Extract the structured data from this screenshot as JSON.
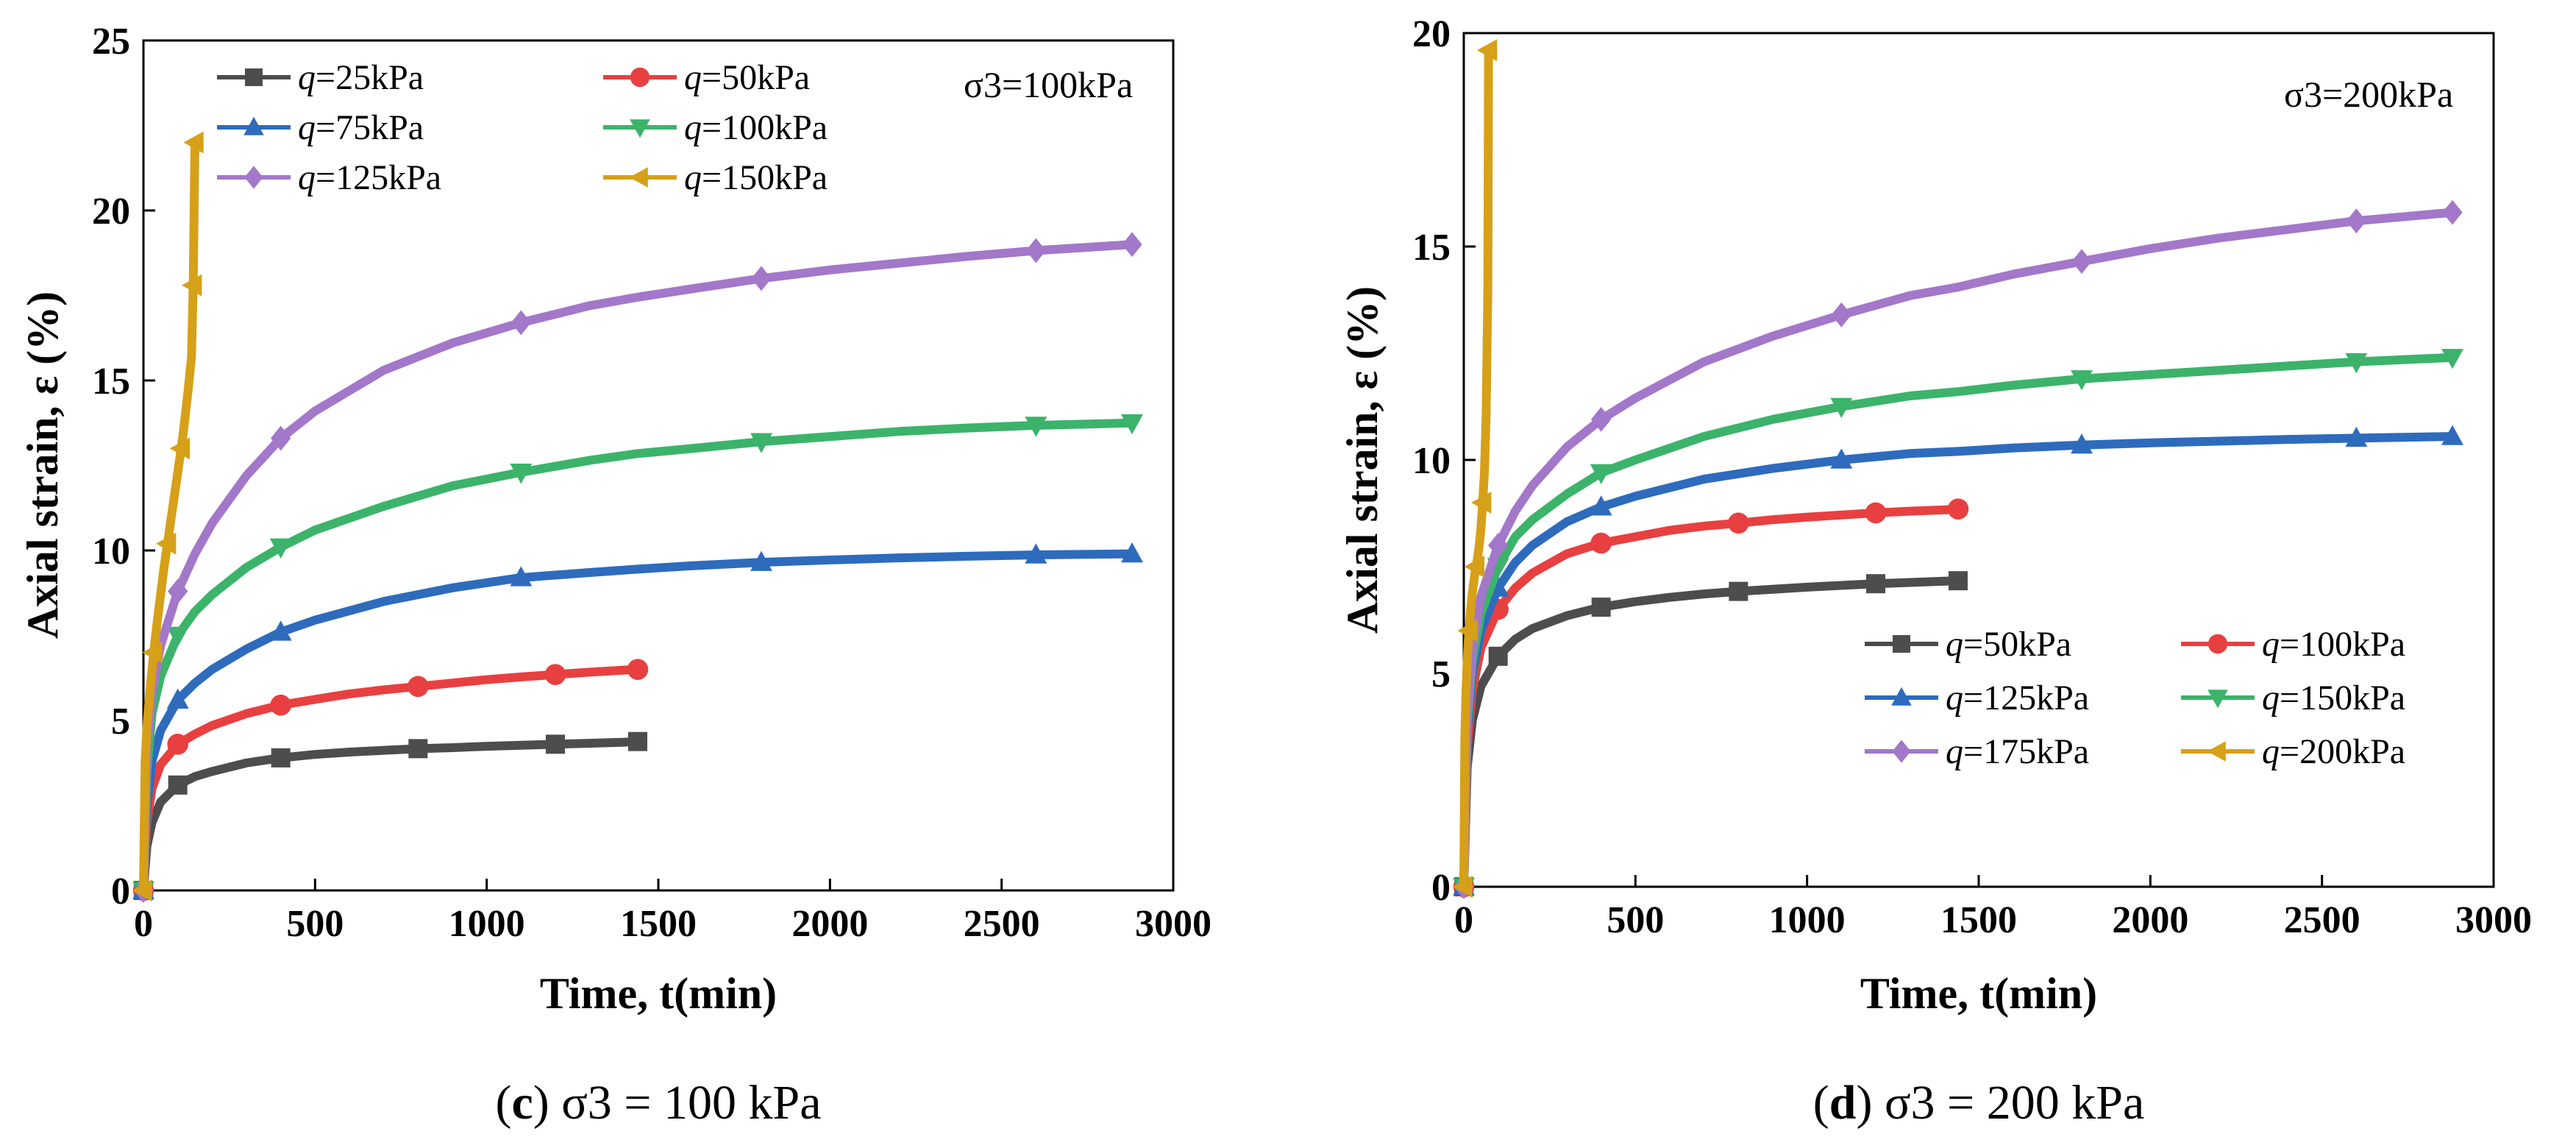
{
  "chart_data": [
    {
      "type": "line",
      "panel": "c",
      "xlabel": "Time, t(min)",
      "ylabel": "Axial strain, ε (%)",
      "xlim": [
        0,
        3000
      ],
      "ylim": [
        0,
        25
      ],
      "xticks": [
        0,
        500,
        1000,
        1500,
        2000,
        2500,
        3000
      ],
      "yticks": [
        0,
        5,
        10,
        15,
        20,
        25
      ],
      "annotation": "σ3=100kPa",
      "caption_letter": "c",
      "caption_rest": " σ3 = 100 kPa",
      "series": [
        {
          "name": "q=25kPa",
          "color": "#4d4d4d",
          "marker": "square",
          "x": [
            0,
            10,
            25,
            50,
            100,
            150,
            200,
            300,
            400,
            500,
            600,
            700,
            800,
            900,
            1000,
            1100,
            1200,
            1300,
            1400,
            1440
          ],
          "y": [
            0,
            1.3,
            2.0,
            2.6,
            3.1,
            3.35,
            3.5,
            3.75,
            3.9,
            4.0,
            4.07,
            4.12,
            4.17,
            4.2,
            4.24,
            4.27,
            4.3,
            4.33,
            4.36,
            4.38
          ]
        },
        {
          "name": "q=50kPa",
          "color": "#e84040",
          "marker": "circle",
          "x": [
            0,
            10,
            25,
            50,
            100,
            150,
            200,
            300,
            400,
            500,
            600,
            700,
            800,
            900,
            1000,
            1100,
            1200,
            1300,
            1400,
            1440
          ],
          "y": [
            0,
            2.0,
            3.0,
            3.7,
            4.3,
            4.6,
            4.85,
            5.2,
            5.45,
            5.62,
            5.78,
            5.9,
            6.0,
            6.1,
            6.2,
            6.28,
            6.35,
            6.42,
            6.48,
            6.5
          ]
        },
        {
          "name": "q=75kPa",
          "color": "#2e6bbd",
          "marker": "triangle-up",
          "x": [
            0,
            10,
            25,
            50,
            100,
            150,
            200,
            300,
            400,
            500,
            700,
            900,
            1100,
            1300,
            1440,
            1600,
            1800,
            2000,
            2200,
            2400,
            2600,
            2880
          ],
          "y": [
            0,
            2.5,
            3.8,
            4.7,
            5.6,
            6.1,
            6.5,
            7.1,
            7.6,
            7.95,
            8.5,
            8.9,
            9.2,
            9.35,
            9.45,
            9.55,
            9.65,
            9.72,
            9.78,
            9.83,
            9.87,
            9.9
          ]
        },
        {
          "name": "q=100kPa",
          "color": "#3cb36a",
          "marker": "triangle-down",
          "x": [
            0,
            10,
            25,
            50,
            100,
            150,
            200,
            300,
            400,
            500,
            700,
            900,
            1100,
            1300,
            1440,
            1600,
            1800,
            2000,
            2200,
            2400,
            2600,
            2880
          ],
          "y": [
            0,
            3.5,
            5.2,
            6.3,
            7.5,
            8.2,
            8.7,
            9.5,
            10.1,
            10.6,
            11.3,
            11.9,
            12.3,
            12.65,
            12.85,
            13.0,
            13.2,
            13.35,
            13.5,
            13.6,
            13.68,
            13.75
          ]
        },
        {
          "name": "q=125kPa",
          "color": "#a377c9",
          "marker": "diamond",
          "x": [
            0,
            10,
            25,
            50,
            100,
            150,
            200,
            300,
            400,
            500,
            700,
            900,
            1100,
            1300,
            1440,
            1600,
            1800,
            2000,
            2200,
            2400,
            2600,
            2880
          ],
          "y": [
            0,
            4.2,
            5.8,
            7.2,
            8.8,
            9.9,
            10.8,
            12.2,
            13.3,
            14.1,
            15.3,
            16.1,
            16.7,
            17.2,
            17.45,
            17.7,
            18.0,
            18.25,
            18.45,
            18.65,
            18.82,
            19.0
          ]
        },
        {
          "name": "q=150kPa",
          "color": "#d6a018",
          "marker": "triangle-left",
          "x": [
            0,
            5,
            10,
            20,
            30,
            40,
            50,
            60,
            70,
            80,
            90,
            100,
            110,
            120,
            130,
            140,
            145,
            150
          ],
          "y": [
            0,
            3.8,
            4.8,
            6.0,
            7.0,
            7.9,
            8.7,
            9.5,
            10.2,
            10.9,
            11.6,
            12.3,
            13.0,
            13.8,
            14.7,
            15.7,
            17.8,
            22.0
          ]
        }
      ]
    },
    {
      "type": "line",
      "panel": "d",
      "xlabel": "Time, t(min)",
      "ylabel": "Axial strain, ε (%)",
      "xlim": [
        0,
        3000
      ],
      "ylim": [
        0,
        20
      ],
      "xticks": [
        0,
        500,
        1000,
        1500,
        2000,
        2500,
        3000
      ],
      "yticks": [
        0,
        5,
        10,
        15,
        20
      ],
      "annotation": "σ3=200kPa",
      "caption_letter": "d",
      "caption_rest": " σ3 = 200 kPa",
      "series": [
        {
          "name": "q=50kPa",
          "color": "#4d4d4d",
          "marker": "square",
          "x": [
            0,
            10,
            25,
            50,
            100,
            150,
            200,
            300,
            400,
            500,
            600,
            700,
            800,
            900,
            1000,
            1100,
            1200,
            1300,
            1400,
            1440
          ],
          "y": [
            0,
            2.8,
            3.9,
            4.7,
            5.4,
            5.8,
            6.05,
            6.35,
            6.55,
            6.68,
            6.78,
            6.86,
            6.92,
            6.97,
            7.02,
            7.06,
            7.1,
            7.13,
            7.16,
            7.17
          ]
        },
        {
          "name": "q=100kPa",
          "color": "#e84040",
          "marker": "circle",
          "x": [
            0,
            10,
            25,
            50,
            100,
            150,
            200,
            300,
            400,
            500,
            600,
            700,
            800,
            900,
            1000,
            1100,
            1200,
            1300,
            1400,
            1440
          ],
          "y": [
            0,
            3.3,
            4.6,
            5.6,
            6.5,
            7.0,
            7.35,
            7.8,
            8.05,
            8.2,
            8.35,
            8.45,
            8.52,
            8.6,
            8.66,
            8.71,
            8.76,
            8.8,
            8.83,
            8.85
          ]
        },
        {
          "name": "q=125kPa",
          "color": "#2e6bbd",
          "marker": "triangle-up",
          "x": [
            0,
            10,
            25,
            50,
            100,
            150,
            200,
            300,
            400,
            500,
            700,
            900,
            1100,
            1300,
            1440,
            1600,
            1800,
            2000,
            2200,
            2400,
            2600,
            2880
          ],
          "y": [
            0,
            3.6,
            5.0,
            6.0,
            7.0,
            7.6,
            8.0,
            8.55,
            8.9,
            9.15,
            9.55,
            9.8,
            10.0,
            10.15,
            10.2,
            10.28,
            10.35,
            10.4,
            10.44,
            10.48,
            10.51,
            10.55
          ]
        },
        {
          "name": "q=150kPa",
          "color": "#3cb36a",
          "marker": "triangle-down",
          "x": [
            0,
            10,
            25,
            50,
            100,
            150,
            200,
            300,
            400,
            500,
            700,
            900,
            1100,
            1300,
            1440,
            1600,
            1800,
            2000,
            2200,
            2400,
            2600,
            2880
          ],
          "y": [
            0,
            3.8,
            5.3,
            6.4,
            7.5,
            8.2,
            8.6,
            9.2,
            9.7,
            10.0,
            10.55,
            10.95,
            11.25,
            11.5,
            11.6,
            11.75,
            11.9,
            12.0,
            12.1,
            12.2,
            12.3,
            12.4
          ]
        },
        {
          "name": "q=175kPa",
          "color": "#a377c9",
          "marker": "diamond",
          "x": [
            0,
            10,
            25,
            50,
            100,
            150,
            200,
            300,
            400,
            500,
            700,
            900,
            1100,
            1300,
            1440,
            1600,
            1800,
            2000,
            2200,
            2400,
            2600,
            2880
          ],
          "y": [
            0,
            4.0,
            5.6,
            6.8,
            8.0,
            8.8,
            9.4,
            10.3,
            10.95,
            11.45,
            12.3,
            12.9,
            13.4,
            13.85,
            14.05,
            14.35,
            14.65,
            14.95,
            15.2,
            15.4,
            15.6,
            15.8
          ]
        },
        {
          "name": "q=200kPa",
          "color": "#d6a018",
          "marker": "triangle-left",
          "x": [
            0,
            3,
            6,
            10,
            15,
            20,
            25,
            30,
            35,
            40,
            45,
            50,
            55,
            60,
            65,
            70,
            72
          ],
          "y": [
            0,
            3.5,
            4.5,
            5.3,
            6.0,
            6.5,
            6.9,
            7.2,
            7.5,
            7.7,
            8.0,
            8.4,
            9.0,
            9.7,
            11.0,
            14.0,
            19.6
          ]
        }
      ]
    }
  ]
}
